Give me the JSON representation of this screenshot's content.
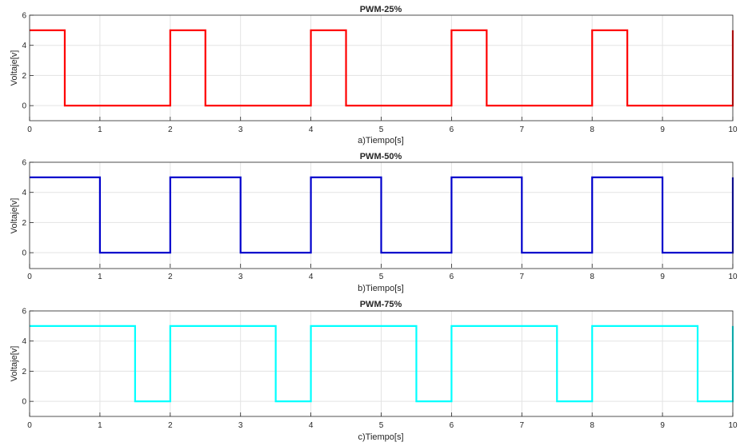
{
  "chart_data": [
    {
      "type": "line",
      "title": "PWM-25%",
      "xlabel": "a)Tiempo[s]",
      "ylabel": "Voltaje[v]",
      "xlim": [
        0,
        10
      ],
      "ylim": [
        -1,
        6
      ],
      "xticks": [
        0,
        1,
        2,
        3,
        4,
        5,
        6,
        7,
        8,
        9,
        10
      ],
      "yticks": [
        0,
        2,
        4,
        6
      ],
      "grid": true,
      "series": [
        {
          "color": "#ff0000",
          "x": [
            0,
            0.5,
            0.5,
            2,
            2,
            2.5,
            2.5,
            4,
            4,
            4.5,
            4.5,
            6,
            6,
            6.5,
            6.5,
            8,
            8,
            8.5,
            8.5,
            10,
            10
          ],
          "y": [
            5,
            5,
            0,
            0,
            5,
            5,
            0,
            0,
            5,
            5,
            0,
            0,
            5,
            5,
            0,
            0,
            5,
            5,
            0,
            0,
            5
          ]
        }
      ]
    },
    {
      "type": "line",
      "title": "PWM-50%",
      "xlabel": "b)Tiempo[s]",
      "ylabel": "Voltaje[v]",
      "xlim": [
        0,
        10
      ],
      "ylim": [
        -1,
        6
      ],
      "xticks": [
        0,
        1,
        2,
        3,
        4,
        5,
        6,
        7,
        8,
        9,
        10
      ],
      "yticks": [
        0,
        2,
        4,
        6
      ],
      "grid": true,
      "series": [
        {
          "color": "#0000cc",
          "x": [
            0,
            1,
            1,
            2,
            2,
            3,
            3,
            4,
            4,
            5,
            5,
            6,
            6,
            7,
            7,
            8,
            8,
            9,
            9,
            10,
            10
          ],
          "y": [
            5,
            5,
            0,
            0,
            5,
            5,
            0,
            0,
            5,
            5,
            0,
            0,
            5,
            5,
            0,
            0,
            5,
            5,
            0,
            0,
            5
          ]
        }
      ]
    },
    {
      "type": "line",
      "title": "PWM-75%",
      "xlabel": "c)Tiempo[s]",
      "ylabel": "Voltaje[v]",
      "xlim": [
        0,
        10
      ],
      "ylim": [
        -1,
        6
      ],
      "xticks": [
        0,
        1,
        2,
        3,
        4,
        5,
        6,
        7,
        8,
        9,
        10
      ],
      "yticks": [
        0,
        2,
        4,
        6
      ],
      "grid": true,
      "series": [
        {
          "color": "#00ffff",
          "x": [
            0,
            1.5,
            1.5,
            2,
            2,
            3.5,
            3.5,
            4,
            4,
            5.5,
            5.5,
            6,
            6,
            7.5,
            7.5,
            8,
            8,
            9.5,
            9.5,
            10,
            10
          ],
          "y": [
            5,
            5,
            0,
            0,
            5,
            5,
            0,
            0,
            5,
            5,
            0,
            0,
            5,
            5,
            0,
            0,
            5,
            5,
            0,
            0,
            5
          ]
        }
      ]
    }
  ]
}
